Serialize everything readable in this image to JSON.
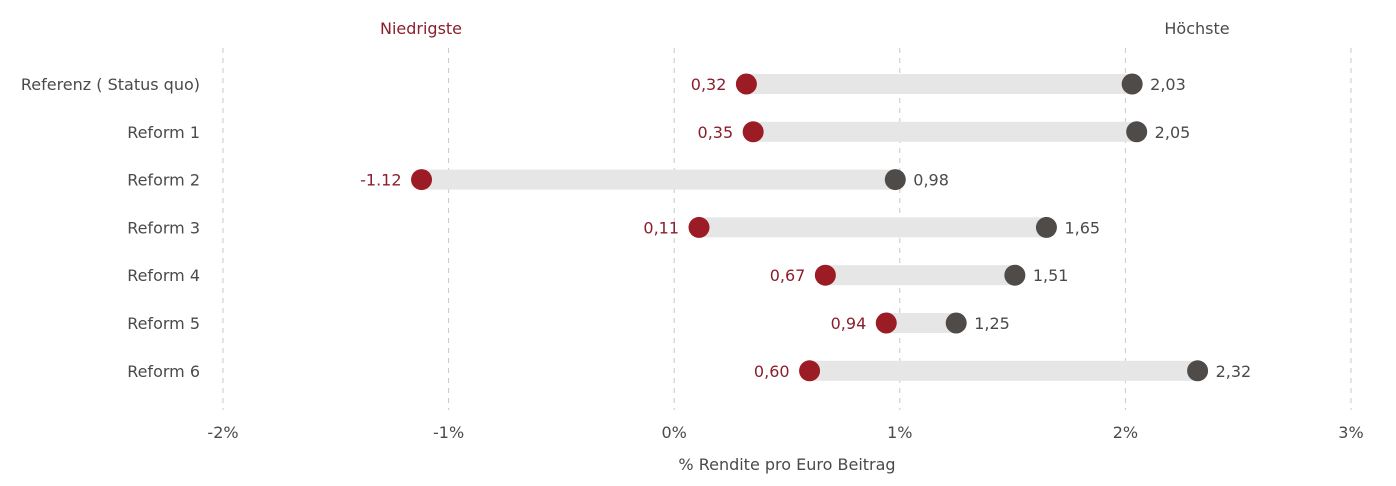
{
  "chart_data": {
    "type": "dumbbell",
    "xlabel": "% Rendite pro Euro Beitrag",
    "xlim": [
      -2,
      3
    ],
    "xticks": [
      -2,
      -1,
      0,
      1,
      2,
      3
    ],
    "xtick_labels": [
      "-2%",
      "-1%",
      "0%",
      "1%",
      "2%",
      "3%"
    ],
    "grid": "vertical dashed",
    "legend": {
      "low_label": "Niedrigste",
      "high_label": "Höchste",
      "placement": "top"
    },
    "categories": [
      "Referenz ( Status quo)",
      "Reform 1",
      "Reform 2",
      "Reform 3",
      "Reform 4",
      "Reform 5",
      "Reform 6"
    ],
    "low_values": [
      0.32,
      0.35,
      -1.12,
      0.11,
      0.67,
      0.94,
      0.6
    ],
    "high_values": [
      2.03,
      2.05,
      0.98,
      1.65,
      1.51,
      1.25,
      2.32
    ],
    "low_labels": [
      "0,32",
      "0,35",
      "-1.12",
      "0,11",
      "0,67",
      "0,94",
      "0,60"
    ],
    "high_labels": [
      "2,03",
      "2,05",
      "0,98",
      "1,65",
      "1,51",
      "1,25",
      "2,32"
    ],
    "colors": {
      "low": "#9b1c24",
      "high": "#4f4b48",
      "bar": "#e6e6e6",
      "grid": "#c8c8c8",
      "low_text": "#8b1e2d",
      "text": "#4a4a4a"
    }
  }
}
